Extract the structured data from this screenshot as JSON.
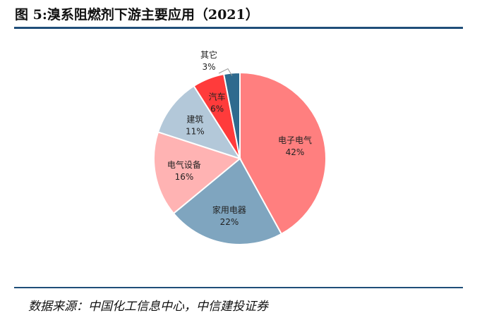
{
  "header": {
    "title": "图 5:溴系阻燃剂下游主要应用（2021）"
  },
  "footer": {
    "source": "数据来源：中国化工信息中心，中信建投证券"
  },
  "chart_data": {
    "type": "pie",
    "slices": [
      {
        "label": "电子电气",
        "value_label": "42%",
        "value": 42,
        "color": "#ff7f7f"
      },
      {
        "label": "家用电器",
        "value_label": "22%",
        "value": 22,
        "color": "#7fa5bf"
      },
      {
        "label": "电气设备",
        "value_label": "16%",
        "value": 16,
        "color": "#ffb3b3"
      },
      {
        "label": "建筑",
        "value_label": "11%",
        "value": 11,
        "color": "#b3c8d9"
      },
      {
        "label": "汽车",
        "value_label": "6%",
        "value": 6,
        "color": "#ff3b3b"
      },
      {
        "label": "其它",
        "value_label": "3%",
        "value": 3,
        "color": "#2e6a8e"
      }
    ]
  }
}
